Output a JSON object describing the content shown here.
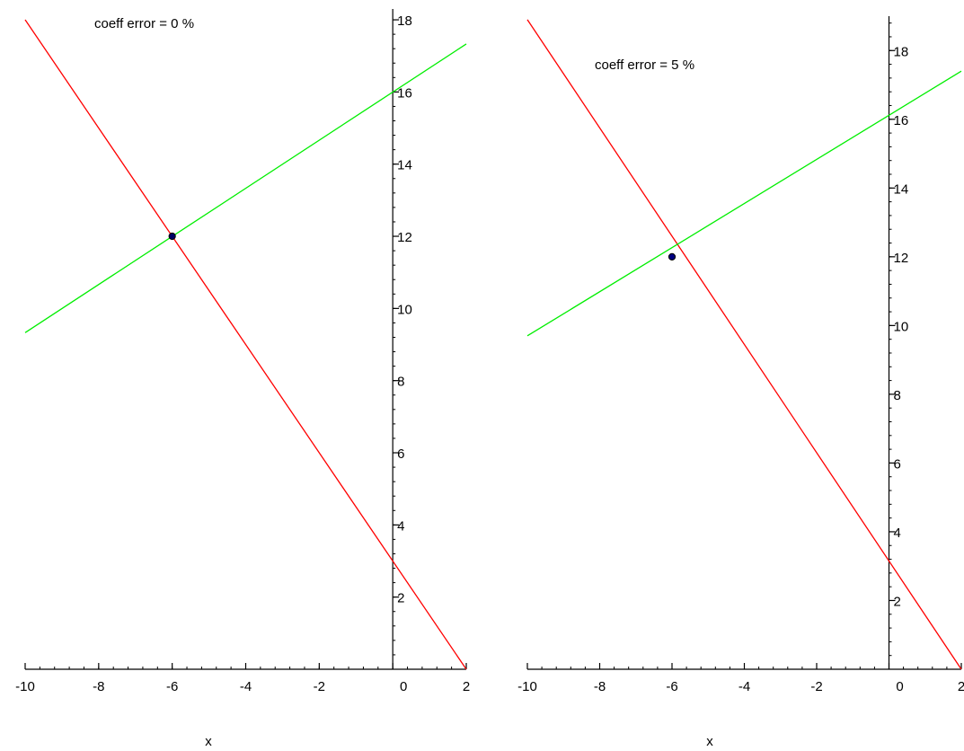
{
  "chart_data": [
    {
      "type": "line",
      "annotation": "coeff error = 0 %",
      "xlabel": "x",
      "ylabel": "",
      "xlim": [
        -10,
        2
      ],
      "ylim": [
        0,
        18.3
      ],
      "x_ticks": [
        -10,
        -8,
        -6,
        -4,
        -2,
        0,
        2
      ],
      "x_tick_labels": [
        "-10",
        "-8",
        "-6",
        "-4",
        "-2",
        "0",
        "2"
      ],
      "y_ticks": [
        2,
        4,
        6,
        8,
        10,
        12,
        14,
        16,
        18
      ],
      "y_tick_labels": [
        "2",
        "4",
        "6",
        "8",
        "10",
        "12",
        "14",
        "16",
        "18"
      ],
      "grid": false,
      "series": [
        {
          "color": "#ff0000",
          "x": [
            -10,
            2
          ],
          "y": [
            18,
            0
          ]
        },
        {
          "color": "#00ee00",
          "x": [
            -10,
            2
          ],
          "y": [
            9.33,
            17.33
          ]
        }
      ],
      "points": [
        {
          "x": -6,
          "y": 12,
          "color": "#000066"
        }
      ]
    },
    {
      "type": "line",
      "annotation": "coeff error = 5 %",
      "xlabel": "x",
      "ylabel": "",
      "xlim": [
        -10,
        2
      ],
      "ylim": [
        0,
        19
      ],
      "x_ticks": [
        -10,
        -8,
        -6,
        -4,
        -2,
        0,
        2
      ],
      "x_tick_labels": [
        "-10",
        "-8",
        "-6",
        "-4",
        "-2",
        "0",
        "2"
      ],
      "y_ticks": [
        2,
        4,
        6,
        8,
        10,
        12,
        14,
        16,
        18
      ],
      "y_tick_labels": [
        "2",
        "4",
        "6",
        "8",
        "10",
        "12",
        "14",
        "16",
        "18"
      ],
      "grid": false,
      "series": [
        {
          "color": "#ff0000",
          "x": [
            -10,
            2
          ],
          "y": [
            18.9,
            0
          ]
        },
        {
          "color": "#00ee00",
          "x": [
            -10,
            2
          ],
          "y": [
            9.7,
            17.4
          ]
        }
      ],
      "points": [
        {
          "x": -6,
          "y": 12,
          "color": "#000080"
        }
      ]
    }
  ]
}
